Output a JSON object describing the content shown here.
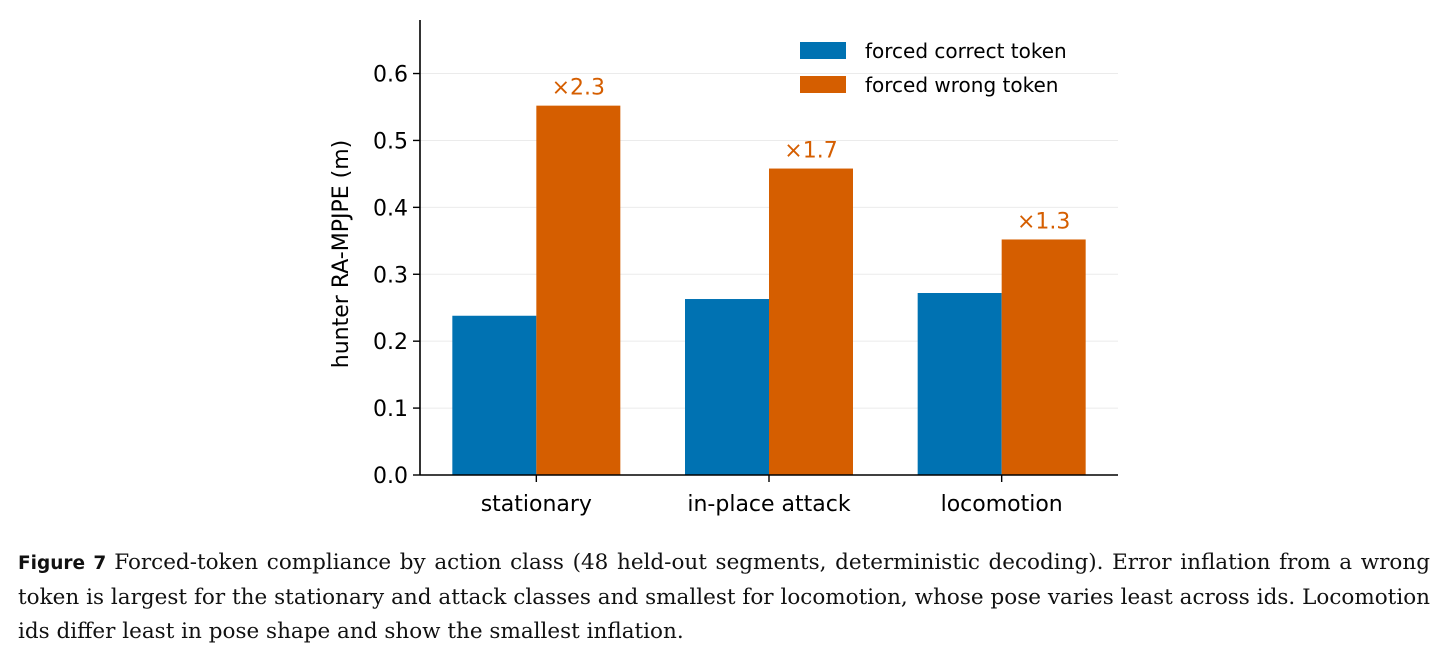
{
  "chart_data": {
    "type": "bar",
    "ylabel": "hunter RA-MPJPE (m)",
    "xlabel": "",
    "ylim": [
      0,
      0.68
    ],
    "yticks": [
      "0.0",
      "0.1",
      "0.2",
      "0.3",
      "0.4",
      "0.5",
      "0.6"
    ],
    "categories": [
      "stationary",
      "in-place attack",
      "locomotion"
    ],
    "series": [
      {
        "name": "forced correct token",
        "color": "#0072b2",
        "values": [
          0.238,
          0.263,
          0.272
        ]
      },
      {
        "name": "forced wrong token",
        "color": "#d55e00",
        "values": [
          0.552,
          0.458,
          0.352
        ]
      }
    ],
    "annotations": [
      "×2.3",
      "×1.7",
      "×1.3"
    ],
    "annotation_color": "#d55e00",
    "grid": "horizontal",
    "legend": "top-right"
  },
  "caption": {
    "label": "Figure 7",
    "text": "Forced-token compliance by action class (48 held-out segments, deterministic decoding). Error inflation from a wrong token is largest for the stationary and attack classes and smallest for locomotion, whose pose varies least across ids. Locomotion ids differ least in pose shape and show the smallest inflation."
  }
}
